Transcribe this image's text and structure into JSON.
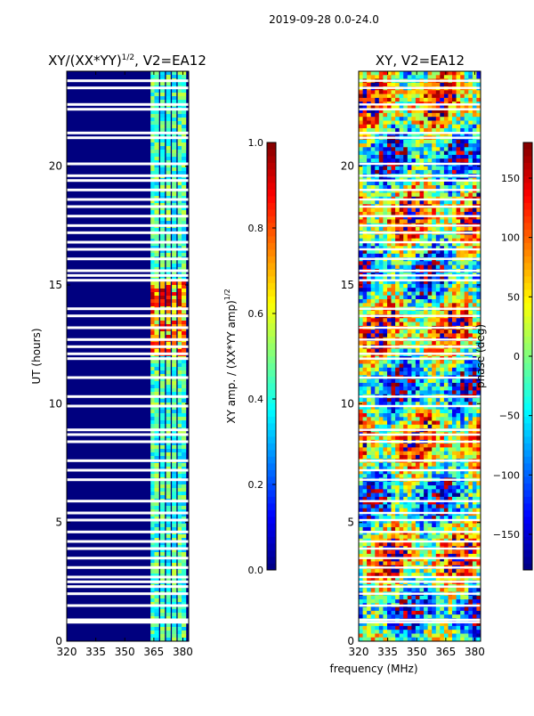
{
  "figure_title": "2019-09-28 0.0-24.0",
  "shared_xlabel": "frequency (MHz)",
  "colors": {
    "background": "#00007f",
    "jet_stops": [
      "#00007f",
      "#0000ff",
      "#007fff",
      "#00ffff",
      "#7fff7f",
      "#ffff00",
      "#ff7f00",
      "#ff0000",
      "#7f0000"
    ]
  },
  "chart_data": [
    {
      "type": "heatmap",
      "name": "amplitude-panel",
      "title_main": "XY/(XX*YY)",
      "title_sup": "1/2",
      "title_tail": ", V2=EA12",
      "xlabel": "",
      "ylabel": "UT (hours)",
      "xlim": [
        320,
        383
      ],
      "ylim": [
        0,
        24
      ],
      "x_ticks": [
        320,
        335,
        350,
        365,
        380
      ],
      "y_ticks": [
        0,
        5,
        10,
        15,
        20
      ],
      "colorbar": {
        "label_main": "XY amp. / (XX*YY amp)",
        "label_sup": "1/2",
        "range": [
          0.0,
          1.0
        ],
        "ticks": [
          "0.0",
          "0.2",
          "0.4",
          "0.6",
          "0.8",
          "1.0"
        ]
      },
      "gap_hours": [
        0.8,
        0.9,
        1.5,
        2.0,
        2.3,
        2.5,
        2.7,
        3.1,
        3.5,
        3.9,
        4.2,
        4.6,
        5.1,
        5.4,
        5.9,
        6.8,
        7.2,
        7.6,
        8.4,
        8.7,
        8.9,
        9.9,
        10.3,
        11.1,
        11.9,
        12.1,
        12.4,
        12.7,
        13.2,
        13.7,
        14.0,
        15.2,
        15.4,
        15.6,
        16.1,
        16.5,
        16.8,
        17.2,
        17.5,
        17.9,
        18.3,
        18.6,
        19.0,
        19.4,
        19.6,
        20.1,
        21.2,
        21.4,
        22.4,
        22.6,
        23.3,
        23.6
      ],
      "active_channels_mhz": [
        364.5,
        366.5,
        369.5,
        372.5,
        375.5,
        378.5,
        380.5
      ]
    },
    {
      "type": "heatmap",
      "name": "phase-panel",
      "title_main": "XY, V2=EA12",
      "xlabel": "",
      "ylabel": "",
      "xlim": [
        320,
        383
      ],
      "ylim": [
        0,
        24
      ],
      "x_ticks": [
        320,
        335,
        350,
        365,
        380
      ],
      "y_ticks": [
        0,
        5,
        10,
        15,
        20
      ],
      "colorbar": {
        "label_main": "phase (deg)",
        "range": [
          -180,
          180
        ],
        "ticks": [
          "−150",
          "−100",
          "−50",
          "0",
          "50",
          "100",
          "150"
        ]
      },
      "gap_hours": [
        0.8,
        0.9,
        1.5,
        2.0,
        2.3,
        2.5,
        2.7,
        3.1,
        3.5,
        3.9,
        4.2,
        4.6,
        5.1,
        5.4,
        5.9,
        6.8,
        7.2,
        7.6,
        8.4,
        8.7,
        8.9,
        9.9,
        10.3,
        11.1,
        11.9,
        12.1,
        12.4,
        12.7,
        13.2,
        13.7,
        14.0,
        15.2,
        15.4,
        15.6,
        16.1,
        16.5,
        16.8,
        17.2,
        17.5,
        17.9,
        18.3,
        18.6,
        19.0,
        19.4,
        19.6,
        20.1,
        21.2,
        21.4,
        22.4,
        22.6,
        23.3,
        23.6
      ]
    }
  ]
}
